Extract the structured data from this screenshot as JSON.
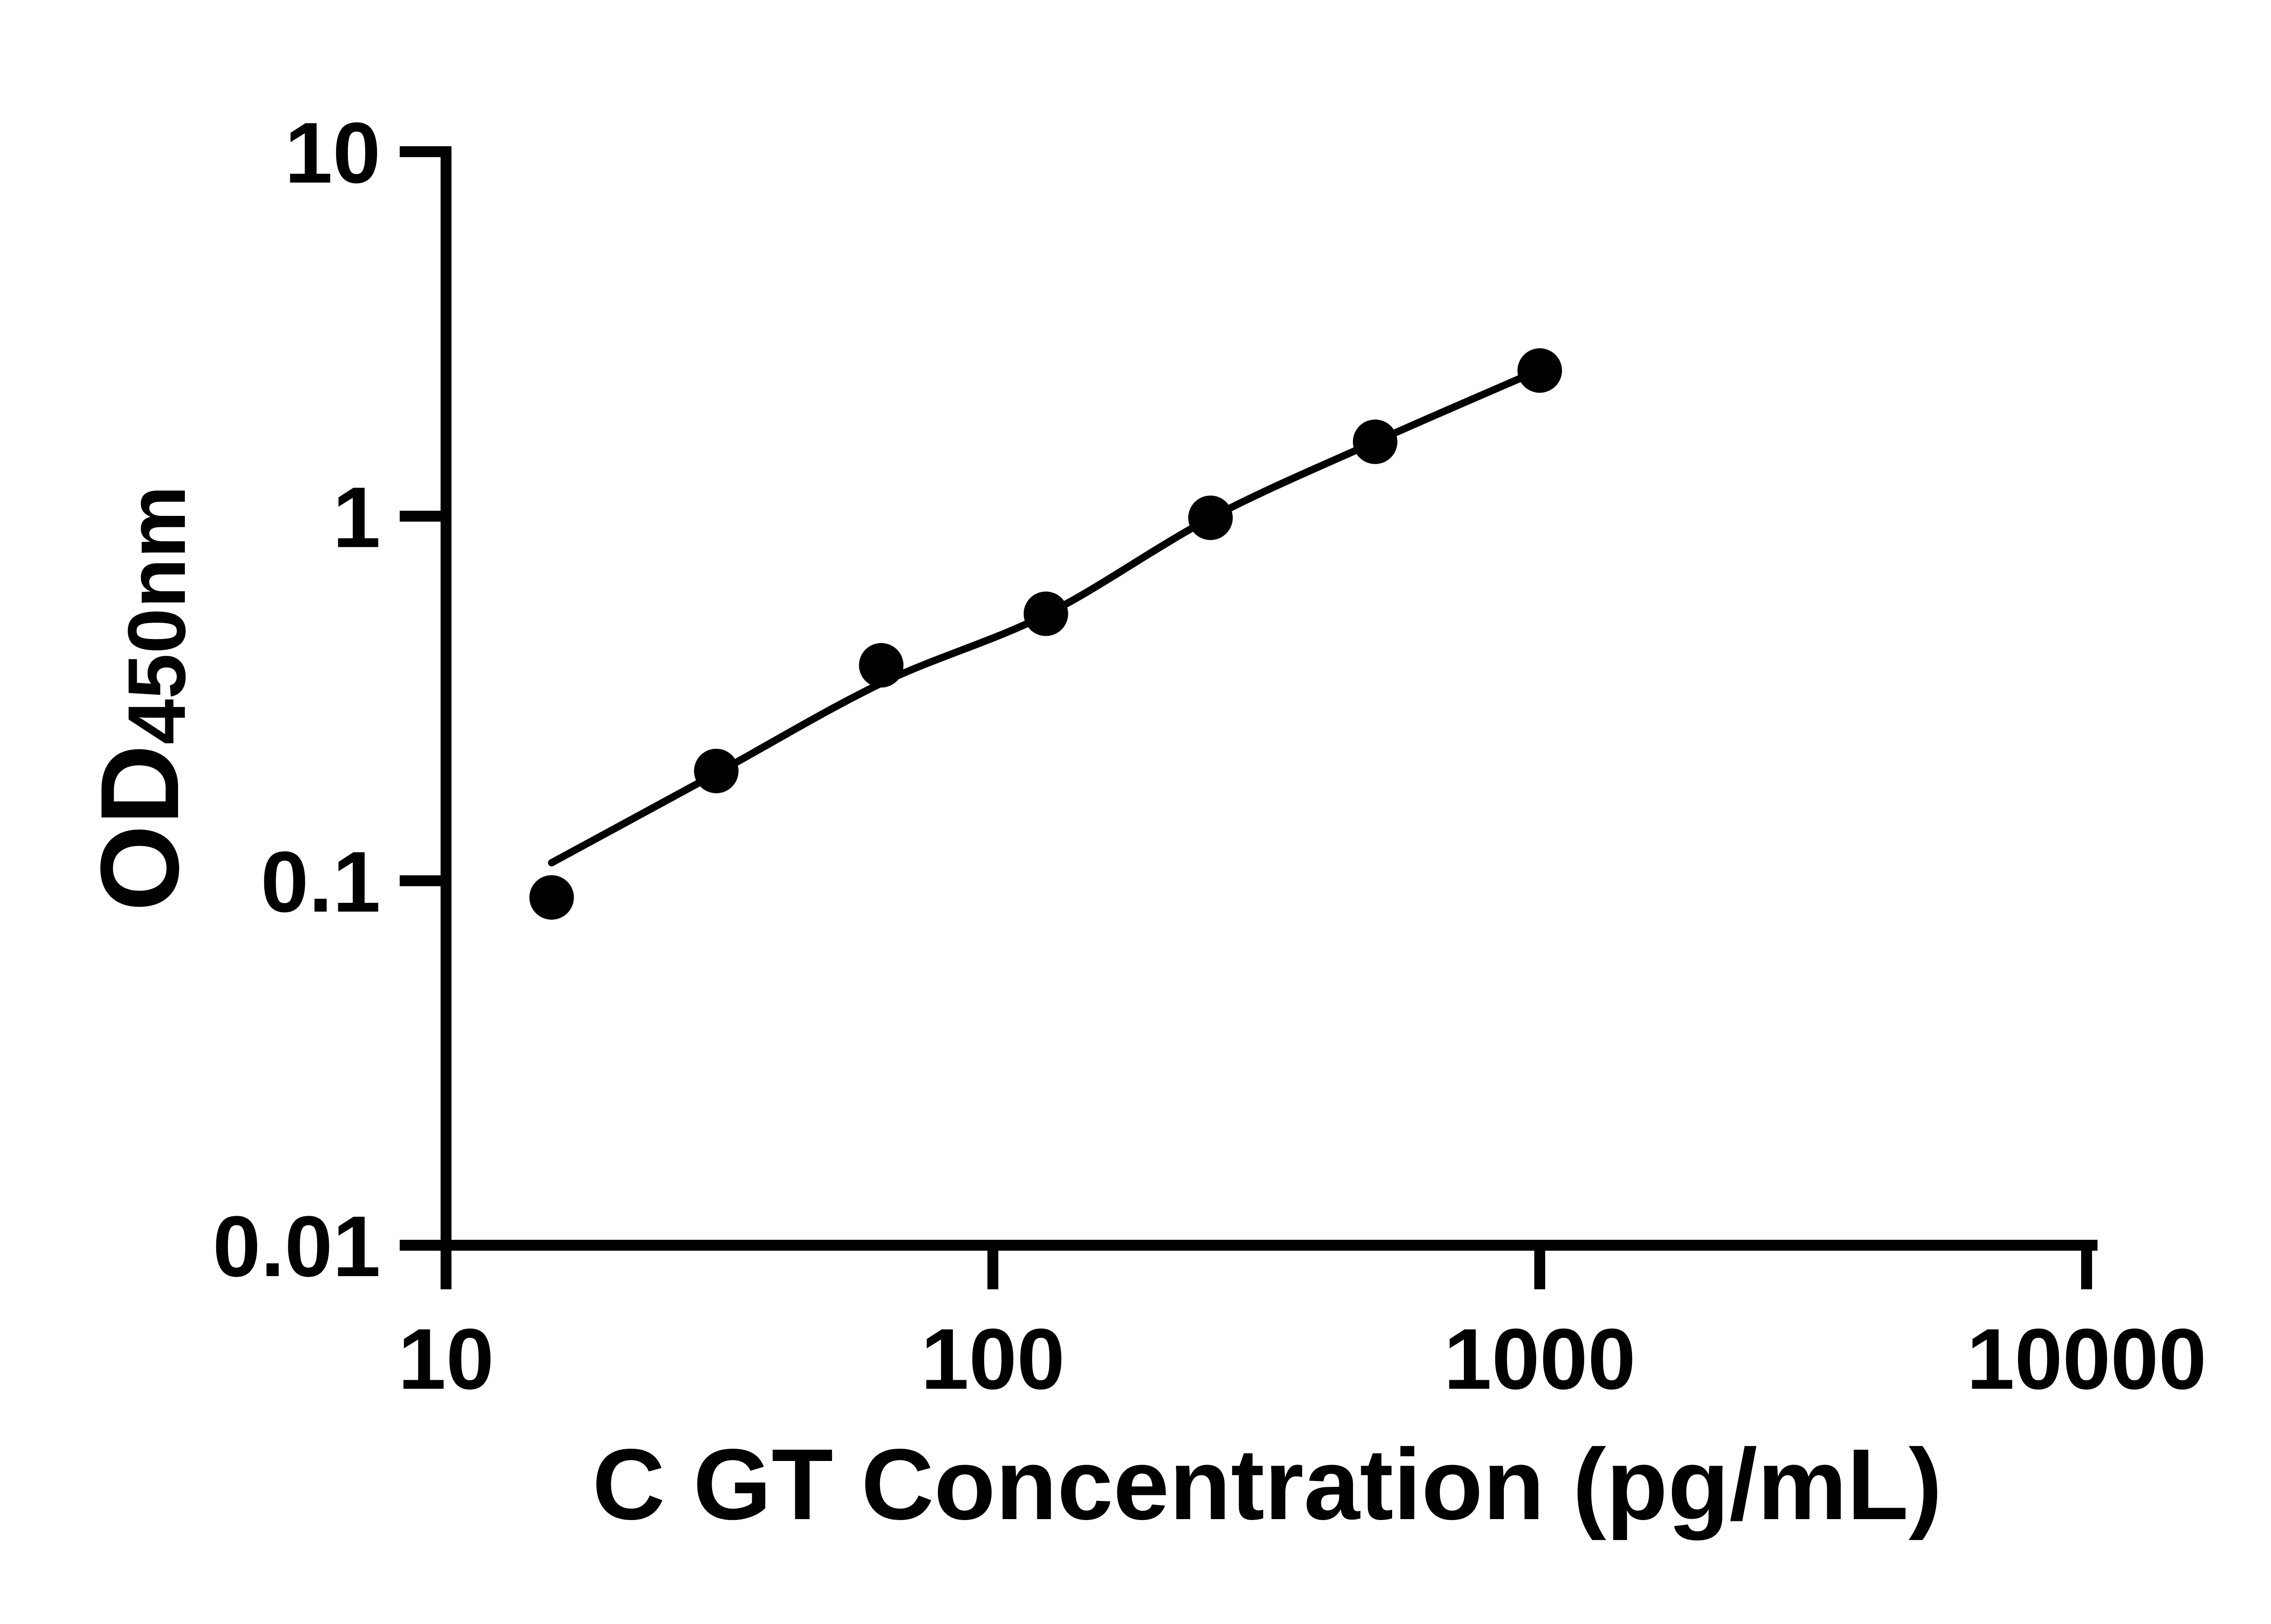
{
  "figure": {
    "background_color": "#ffffff",
    "ink_color": "#000000"
  },
  "chart_data": {
    "type": "scatter",
    "title": "",
    "xlabel": "C GT Concentration (pg/mL)",
    "ylabel": "OD450nm",
    "ylabel_main": "OD",
    "ylabel_sub": "450nm",
    "x_scale": "log10",
    "y_scale": "log10",
    "xlim": [
      10,
      10000
    ],
    "ylim": [
      0.01,
      10
    ],
    "grid": false,
    "legend": null,
    "x_ticks": {
      "values": [
        10,
        100,
        1000,
        10000
      ],
      "labels": [
        "10",
        "100",
        "1000",
        "10000"
      ]
    },
    "y_ticks": {
      "values": [
        10,
        1,
        0.1,
        0.01
      ],
      "labels": [
        "10",
        "1",
        "0.1",
        "0.01"
      ]
    },
    "series": [
      {
        "name": "standard-points",
        "kind": "points",
        "marker": "filled-circle",
        "color": "#000000",
        "x_pg_ml": [
          15.6,
          31.2,
          62.5,
          125,
          250,
          500,
          1000
        ],
        "y_od": [
          0.09,
          0.2,
          0.39,
          0.54,
          0.99,
          1.6,
          2.51
        ]
      },
      {
        "name": "fitted-curve",
        "kind": "line",
        "style": "solid",
        "color": "#000000",
        "x_pg_ml": [
          15.6,
          31.2,
          62.5,
          125,
          250,
          500,
          1000
        ],
        "y_od": [
          0.112,
          0.197,
          0.348,
          0.537,
          0.988,
          1.6,
          2.52
        ]
      }
    ]
  }
}
